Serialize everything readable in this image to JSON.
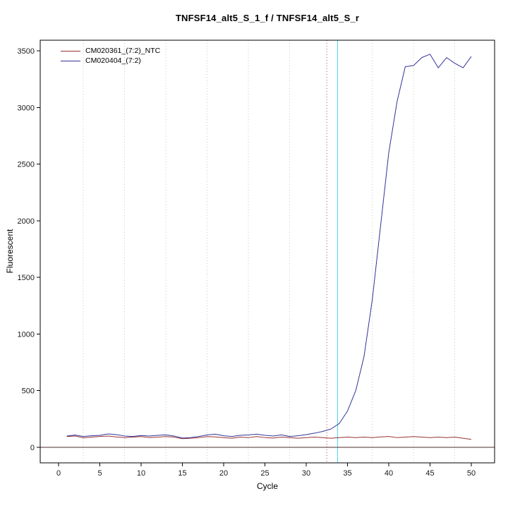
{
  "chart_data": {
    "type": "line",
    "title": "TNFSF14_alt5_S_1_f / TNFSF14_alt5_S_r",
    "xlabel": "Cycle",
    "ylabel": "Fluorescent",
    "xlim": [
      -2.2,
      52.8
    ],
    "ylim": [
      -137,
      3593
    ],
    "x_ticks": [
      0,
      5,
      10,
      15,
      20,
      25,
      30,
      35,
      40,
      45,
      50
    ],
    "y_ticks": [
      0,
      500,
      1000,
      1500,
      2000,
      2500,
      3000,
      3500
    ],
    "grid_x": [
      3,
      8,
      13,
      18,
      23,
      28,
      38,
      43,
      48
    ],
    "x": [
      1,
      2,
      3,
      4,
      5,
      6,
      7,
      8,
      9,
      10,
      11,
      12,
      13,
      14,
      15,
      16,
      17,
      18,
      19,
      20,
      21,
      22,
      23,
      24,
      25,
      26,
      27,
      28,
      29,
      30,
      31,
      32,
      33,
      34,
      35,
      36,
      37,
      38,
      39,
      40,
      41,
      42,
      43,
      44,
      45,
      46,
      47,
      48,
      49,
      50
    ],
    "series": [
      {
        "name": "CM020361_(7:2)_NTC",
        "color": "#993333",
        "values": [
          95,
          100,
          84,
          90,
          96,
          100,
          92,
          86,
          90,
          95,
          86,
          90,
          95,
          90,
          76,
          80,
          86,
          95,
          92,
          86,
          80,
          90,
          86,
          95,
          86,
          82,
          90,
          86,
          80,
          86,
          90,
          86,
          80,
          86,
          90,
          86,
          90,
          86,
          92,
          96,
          86,
          90,
          95,
          90,
          86,
          90,
          86,
          90,
          80,
          70
        ]
      },
      {
        "name": "CM020404_(7:2)",
        "color": "#333399",
        "values": [
          100,
          108,
          96,
          102,
          106,
          118,
          112,
          100,
          96,
          104,
          100,
          106,
          110,
          100,
          82,
          86,
          96,
          110,
          116,
          102,
          96,
          106,
          110,
          116,
          106,
          100,
          110,
          96,
          102,
          112,
          125,
          140,
          162,
          210,
          320,
          500,
          800,
          1300,
          1950,
          2600,
          3050,
          3360,
          3370,
          3440,
          3470,
          3350,
          3440,
          3390,
          3350,
          3450
        ]
      }
    ],
    "vlines": [
      {
        "x": 32.5,
        "color": "#e07a7a",
        "style": "dotted",
        "name": "baseline-end-guide"
      },
      {
        "x": 33.8,
        "color": "#4fd8e8",
        "style": "solid",
        "name": "ct-threshold-cycle-line"
      }
    ],
    "hlines": [
      {
        "y": 0,
        "color": "#4d2e2e",
        "style": "solid",
        "name": "zero-threshold-line"
      }
    ],
    "legend_position": "top-left",
    "grid_color": "#c9c9c9",
    "axis_color": "#000000",
    "tick_label_color": "#1a1a1a"
  }
}
